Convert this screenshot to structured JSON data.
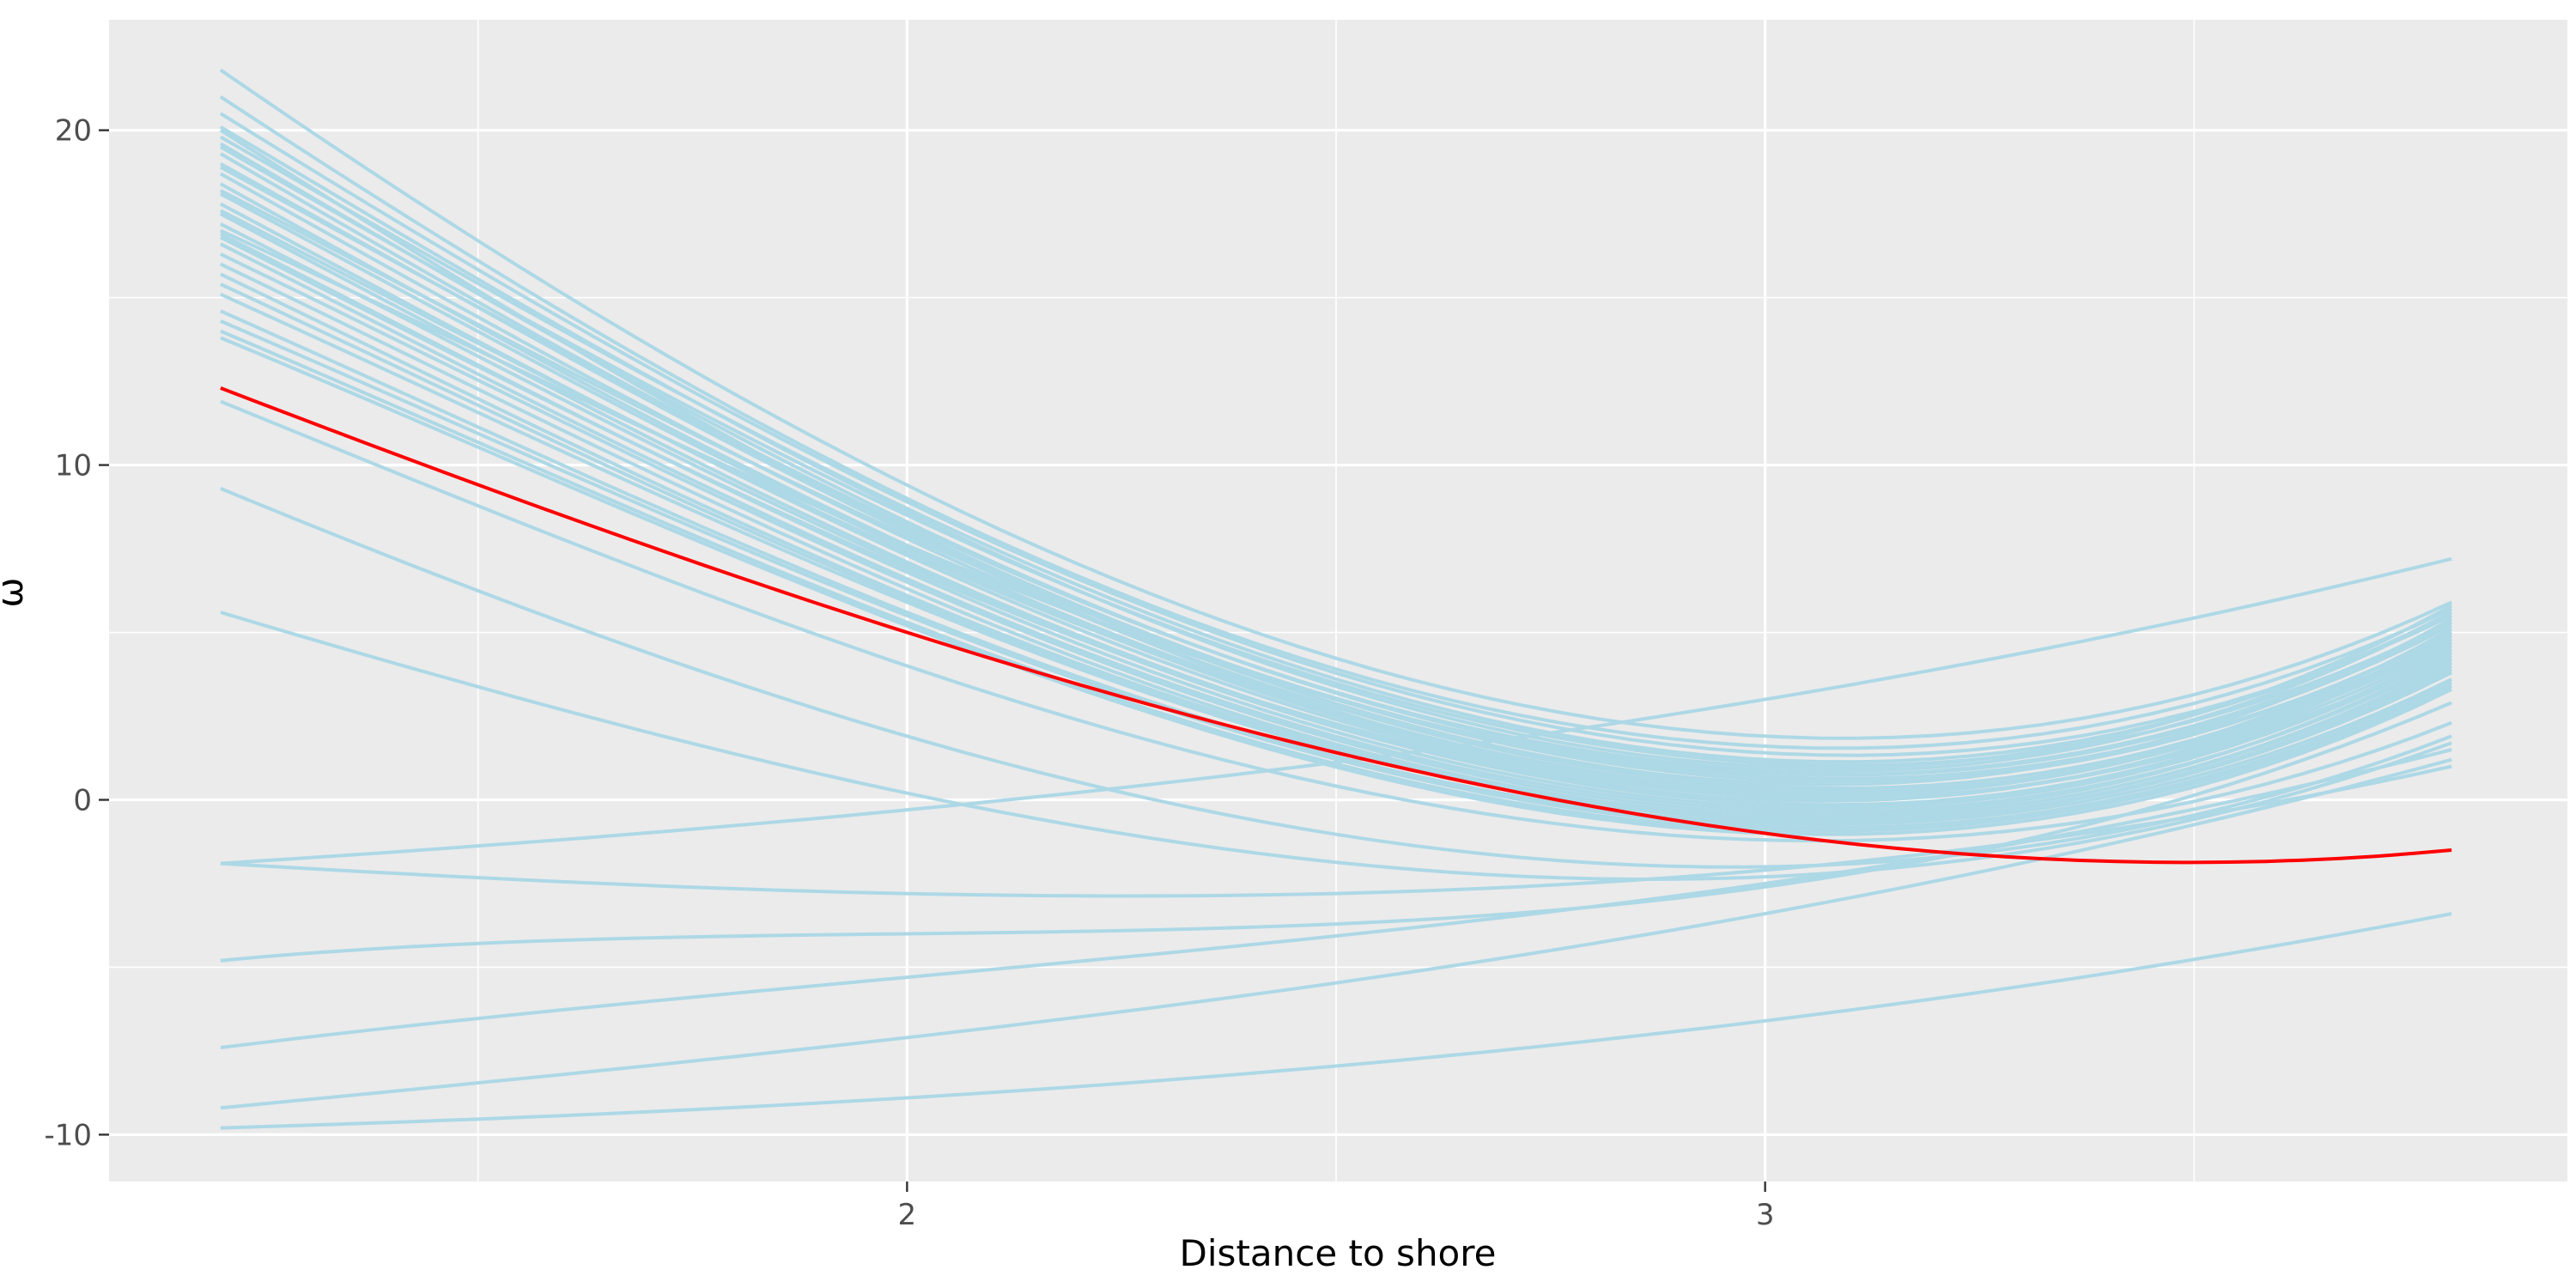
{
  "chart_data": {
    "type": "line",
    "title": "",
    "xlabel": "Distance to shore",
    "ylabel": "ω",
    "xlim": [
      1.07,
      3.935
    ],
    "ylim": [
      -11.4,
      23.3
    ],
    "x_ticks": [
      {
        "value": 2,
        "label": "2"
      },
      {
        "value": 3,
        "label": "3"
      }
    ],
    "x_minor_ticks": [
      1.5,
      2.5,
      3.5
    ],
    "y_ticks": [
      {
        "value": -10,
        "label": "-10"
      },
      {
        "value": 0,
        "label": "0"
      },
      {
        "value": 10,
        "label": "10"
      },
      {
        "value": 20,
        "label": "20"
      }
    ],
    "y_minor_ticks": [
      -5,
      5,
      15
    ],
    "x_range": [
      1.2,
      3.8
    ],
    "grid": true,
    "legend": "none",
    "colors": {
      "panel": "#EBEBEB",
      "grid": "#FFFFFF",
      "draws": "#ADD8E6",
      "highlight": "#FF0000"
    },
    "series_format": "quadratic curve sampled at x = 1.2, 2.0, 3.0, 3.8 (y values in plot units)",
    "highlight_series": {
      "values": [
        12.3,
        5.0,
        -1.0,
        -1.5
      ]
    },
    "series": [
      {
        "values": [
          19.8,
          8.7,
          1.2,
          5.6
        ]
      },
      {
        "values": [
          21.8,
          9.4,
          1.9,
          5.9
        ]
      },
      {
        "values": [
          21.0,
          9.0,
          1.6,
          5.7
        ]
      },
      {
        "values": [
          20.5,
          8.9,
          1.4,
          5.5
        ]
      },
      {
        "values": [
          20.1,
          8.6,
          1.0,
          5.8
        ]
      },
      {
        "values": [
          19.6,
          8.3,
          0.8,
          5.2
        ]
      },
      {
        "values": [
          19.3,
          8.1,
          0.6,
          5.0
        ]
      },
      {
        "values": [
          19.0,
          8.0,
          0.5,
          5.4
        ]
      },
      {
        "values": [
          18.7,
          7.8,
          0.4,
          4.9
        ]
      },
      {
        "values": [
          18.4,
          7.6,
          0.3,
          4.7
        ]
      },
      {
        "values": [
          18.1,
          7.5,
          0.2,
          5.1
        ]
      },
      {
        "values": [
          17.8,
          7.3,
          0.1,
          4.6
        ]
      },
      {
        "values": [
          17.5,
          7.1,
          0.0,
          4.8
        ]
      },
      {
        "values": [
          17.2,
          7.0,
          -0.1,
          4.5
        ]
      },
      {
        "values": [
          16.9,
          6.8,
          -0.2,
          4.4
        ]
      },
      {
        "values": [
          16.6,
          6.6,
          -0.3,
          4.2
        ]
      },
      {
        "values": [
          16.3,
          6.5,
          -0.4,
          4.3
        ]
      },
      {
        "values": [
          16.0,
          6.3,
          -0.5,
          4.1
        ]
      },
      {
        "values": [
          15.7,
          6.1,
          -0.5,
          4.0
        ]
      },
      {
        "values": [
          15.4,
          6.0,
          -0.6,
          3.9
        ]
      },
      {
        "values": [
          15.1,
          5.9,
          -0.6,
          3.8
        ]
      },
      {
        "values": [
          14.6,
          5.6,
          -0.7,
          3.6
        ]
      },
      {
        "values": [
          14.3,
          5.5,
          -0.8,
          3.5
        ]
      },
      {
        "values": [
          14.0,
          5.3,
          -0.9,
          3.4
        ]
      },
      {
        "values": [
          13.8,
          5.2,
          -1.0,
          3.3
        ]
      },
      {
        "values": [
          19.5,
          8.5,
          1.1,
          5.3
        ]
      },
      {
        "values": [
          18.9,
          8.2,
          0.9,
          5.6
        ]
      },
      {
        "values": [
          18.2,
          7.9,
          0.7,
          5.0
        ]
      },
      {
        "values": [
          17.6,
          7.4,
          0.3,
          4.7
        ]
      },
      {
        "values": [
          16.8,
          6.9,
          0.1,
          4.4
        ]
      },
      {
        "values": [
          17.0,
          7.6,
          0.8,
          5.3
        ]
      },
      {
        "values": [
          20.0,
          8.0,
          0.2,
          4.9
        ]
      },
      {
        "values": [
          11.9,
          4.0,
          -1.2,
          2.3
        ]
      },
      {
        "values": [
          9.3,
          1.9,
          -2.0,
          1.9
        ]
      },
      {
        "values": [
          5.6,
          0.2,
          -2.3,
          1.7
        ]
      },
      {
        "values": [
          -1.9,
          -2.8,
          -2.1,
          1.0
        ]
      },
      {
        "values": [
          -1.9,
          -0.3,
          3.0,
          7.2
        ]
      },
      {
        "values": [
          -4.8,
          -4.0,
          -2.6,
          2.9
        ]
      },
      {
        "values": [
          -7.4,
          -5.3,
          -2.5,
          1.5
        ]
      },
      {
        "values": [
          -9.2,
          -7.1,
          -3.4,
          1.2
        ]
      },
      {
        "values": [
          -9.8,
          -8.9,
          -6.6,
          -3.4
        ]
      }
    ]
  }
}
